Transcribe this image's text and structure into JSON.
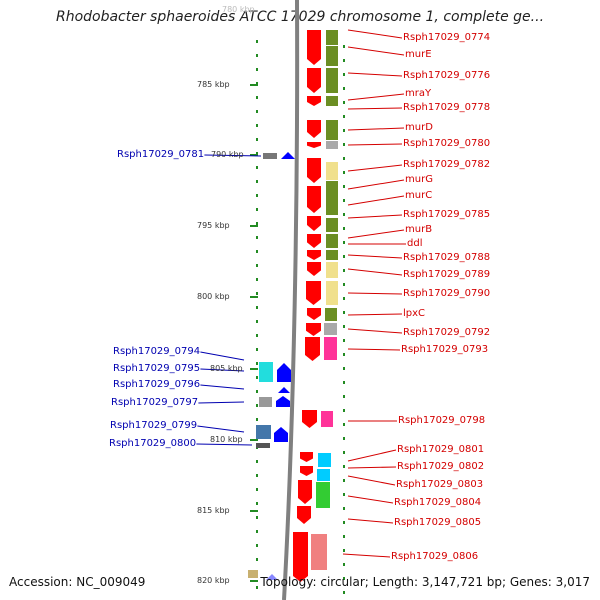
{
  "title": "Rhodobacter sphaeroides ATCC 17029 chromosome 1, complete ge...",
  "footer": {
    "accession": "Accession: NC_009049",
    "topology": "Topology: circular; Length: 3,147,721 bp; Genes: 3,017"
  },
  "scale": {
    "unit": "kbp",
    "ticks": [
      "785 kbp",
      "790 kbp",
      "795 kbp",
      "800 kbp",
      "805 kbp",
      "810 kbp",
      "815 kbp",
      "820 kbp"
    ]
  },
  "genes_right": [
    "Rsph17029_0774",
    "murE",
    "Rsph17029_0776",
    "mraY",
    "Rsph17029_0778",
    "murD",
    "Rsph17029_0780",
    "Rsph17029_0782",
    "murG",
    "murC",
    "Rsph17029_0785",
    "murB",
    "ddl",
    "Rsph17029_0788",
    "Rsph17029_0789",
    "Rsph17029_0790",
    "lpxC",
    "Rsph17029_0792",
    "Rsph17029_0793",
    "Rsph17029_0798",
    "Rsph17029_0801",
    "Rsph17029_0802",
    "Rsph17029_0803",
    "Rsph17029_0804",
    "Rsph17029_0805",
    "Rsph17029_0806"
  ],
  "genes_left": [
    "Rsph17029_0781",
    "Rsph17029_0794",
    "Rsph17029_0795",
    "Rsph17029_0796",
    "Rsph17029_0797",
    "Rsph17029_0799",
    "Rsph17029_0800"
  ],
  "colors": {
    "forward_strand_label": "#d40000",
    "reverse_strand_label": "#0000b0",
    "forward_gene": "#ff0000",
    "reverse_gene": "#0000ff",
    "cog_green": "#6b8e23",
    "cog_yellow": "#f0e08c",
    "cog_gray": "#a9a9a9",
    "cog_magenta": "#ff3399",
    "cog_cyan": "#00ccff",
    "axis_line": "#808080",
    "tick_mark": "#228b22"
  }
}
